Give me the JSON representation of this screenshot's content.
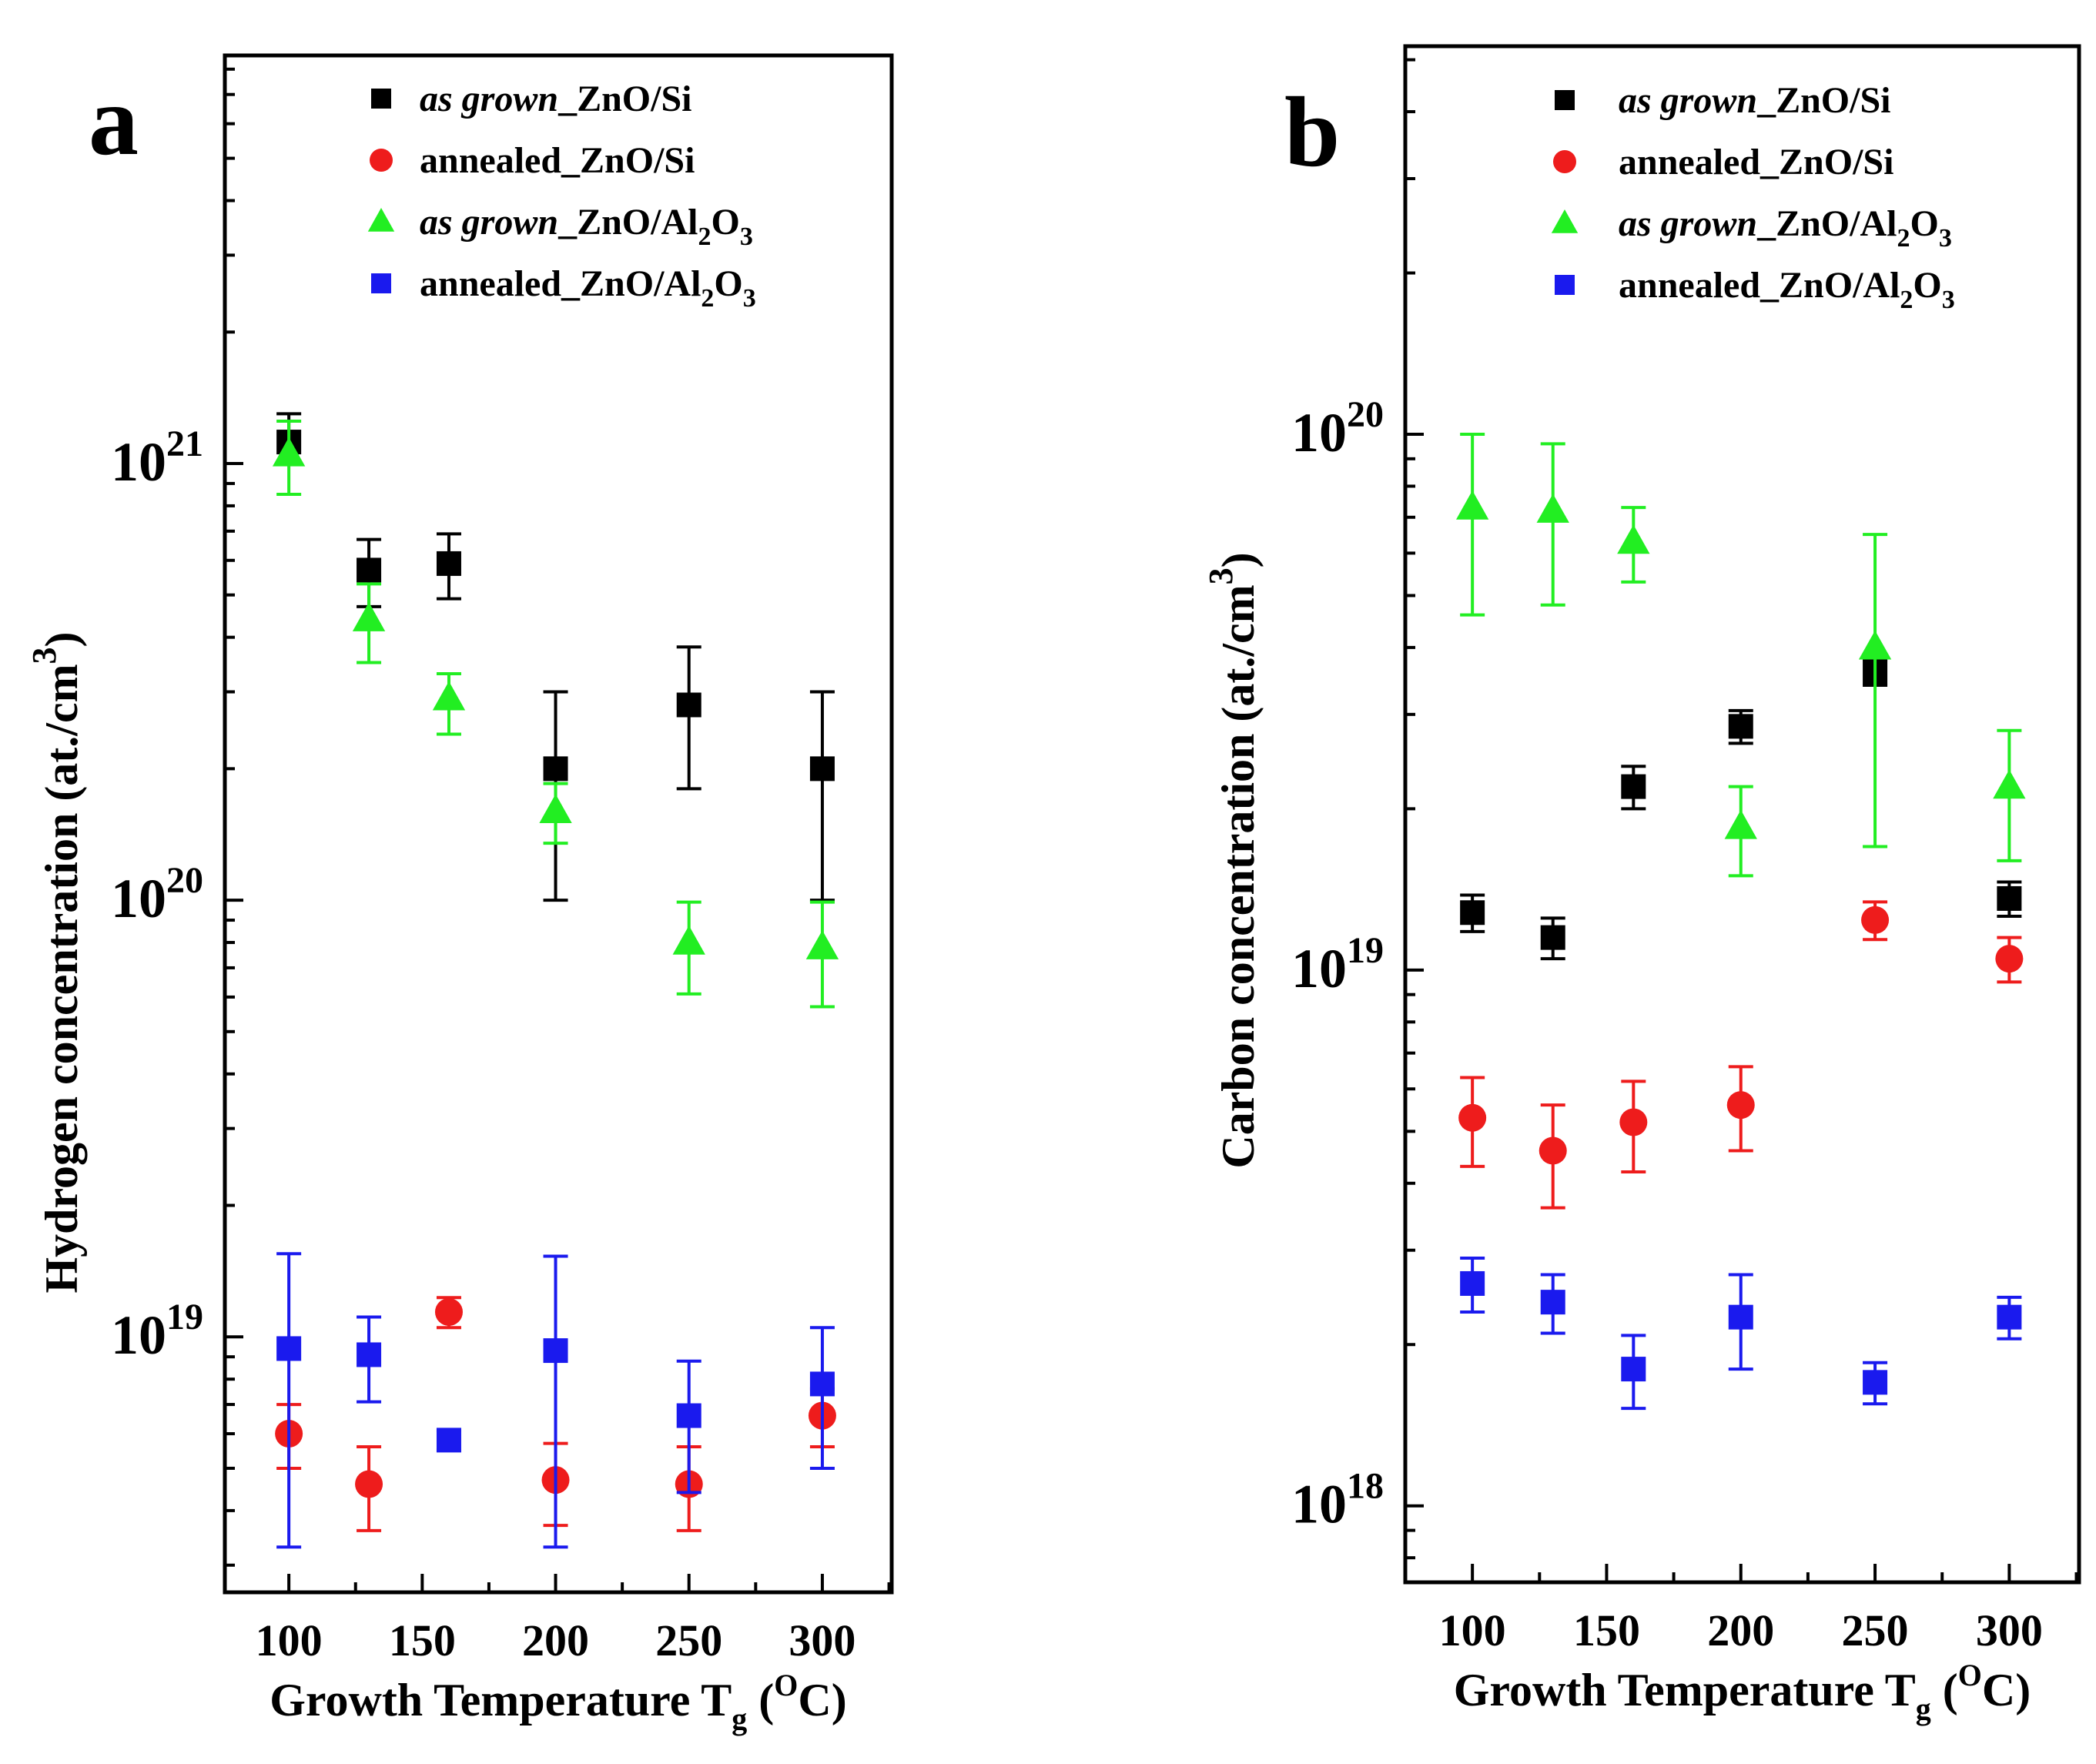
{
  "chart_data": [
    {
      "type": "scatter",
      "panel_label": "a",
      "title": "",
      "xlabel": "Growth Temperature T",
      "xlabel_subscript": "g",
      "xlabel_unit_open": " (",
      "xlabel_unit_sup": "O",
      "xlabel_unit_rest": "C)",
      "ylabel": "Hydrogen concentration (at./cm",
      "ylabel_sup": "3",
      "ylabel_close": ")",
      "yscale": "log",
      "xlim": [
        76,
        326
      ],
      "ylim": [
        2.6e+18,
        8.6e+21
      ],
      "xticks": [
        100,
        150,
        200,
        250,
        300
      ],
      "yticks": [
        {
          "value": 1e+19,
          "base": "10",
          "exp": "19"
        },
        {
          "value": 1e+20,
          "base": "10",
          "exp": "20"
        },
        {
          "value": 1e+21,
          "base": "10",
          "exp": "21"
        }
      ],
      "grid": false,
      "legend_position": "top-right",
      "series": [
        {
          "name": "as grown_ZnO/Si",
          "legend_italic": "as grown",
          "legend_rest": "_ZnO/Si",
          "legend_sub": "",
          "legend_tail": "",
          "marker": "square",
          "color": "#000000",
          "points": [
            {
              "x": 100,
              "y": 1.12e+21,
              "lo": 1e+21,
              "hi": 1.3e+21
            },
            {
              "x": 130,
              "y": 5.7e+20,
              "lo": 4.7e+20,
              "hi": 6.7e+20
            },
            {
              "x": 160,
              "y": 5.9e+20,
              "lo": 4.9e+20,
              "hi": 6.9e+20
            },
            {
              "x": 200,
              "y": 2e+20,
              "lo": 1e+20,
              "hi": 3e+20
            },
            {
              "x": 250,
              "y": 2.8e+20,
              "lo": 1.8e+20,
              "hi": 3.8e+20
            },
            {
              "x": 300,
              "y": 2e+20,
              "lo": 1e+20,
              "hi": 3e+20
            }
          ]
        },
        {
          "name": "annealed_ZnO/Si",
          "legend_italic": "",
          "legend_rest": "annealed_ZnO/Si",
          "legend_sub": "",
          "legend_tail": "",
          "marker": "circle",
          "color": "#ee1c1c",
          "points": [
            {
              "x": 100,
              "y": 6e+18,
              "lo": 5e+18,
              "hi": 7e+18
            },
            {
              "x": 130,
              "y": 4.6e+18,
              "lo": 3.6e+18,
              "hi": 5.6e+18
            },
            {
              "x": 160,
              "y": 1.14e+19,
              "lo": 1.05e+19,
              "hi": 1.23e+19
            },
            {
              "x": 200,
              "y": 4.7e+18,
              "lo": 3.7e+18,
              "hi": 5.7e+18
            },
            {
              "x": 250,
              "y": 4.6e+18,
              "lo": 3.6e+18,
              "hi": 5.6e+18
            },
            {
              "x": 300,
              "y": 6.6e+18,
              "lo": 5.6e+18,
              "hi": 7.6e+18
            }
          ]
        },
        {
          "name": "as grown_ZnO/Al2O3",
          "legend_italic": "as grown",
          "legend_rest": "_ZnO/Al",
          "legend_sub": "2",
          "legend_tail": "O",
          "legend_sub2": "3",
          "marker": "triangle",
          "color": "#22ee22",
          "points": [
            {
              "x": 100,
              "y": 1.05e+21,
              "lo": 8.5e+20,
              "hi": 1.25e+21
            },
            {
              "x": 130,
              "y": 4.4e+20,
              "lo": 3.5e+20,
              "hi": 5.3e+20
            },
            {
              "x": 160,
              "y": 2.9e+20,
              "lo": 2.4e+20,
              "hi": 3.3e+20
            },
            {
              "x": 200,
              "y": 1.6e+20,
              "lo": 1.35e+20,
              "hi": 1.85e+20
            },
            {
              "x": 250,
              "y": 8e+19,
              "lo": 6.1e+19,
              "hi": 9.9e+19
            },
            {
              "x": 300,
              "y": 7.8e+19,
              "lo": 5.7e+19,
              "hi": 9.9e+19
            }
          ]
        },
        {
          "name": "annealed_ZnO/Al2O3",
          "legend_italic": "",
          "legend_rest": "annealed_ZnO/Al",
          "legend_sub": "2",
          "legend_tail": "O",
          "legend_sub2": "3",
          "marker": "square",
          "color": "#1a1aee",
          "points": [
            {
              "x": 100,
              "y": 9.4e+18,
              "lo": 3.3e+18,
              "hi": 1.55e+19
            },
            {
              "x": 130,
              "y": 9.1e+18,
              "lo": 7.1e+18,
              "hi": 1.11e+19
            },
            {
              "x": 160,
              "y": 5.8e+18,
              "lo": 5.5e+18,
              "hi": 6.1e+18
            },
            {
              "x": 200,
              "y": 9.3e+18,
              "lo": 3.3e+18,
              "hi": 1.53e+19
            },
            {
              "x": 250,
              "y": 6.6e+18,
              "lo": 4.4e+18,
              "hi": 8.8e+18
            },
            {
              "x": 300,
              "y": 7.8e+18,
              "lo": 5e+18,
              "hi": 1.05e+19
            }
          ]
        }
      ]
    },
    {
      "type": "scatter",
      "panel_label": "b",
      "title": "",
      "xlabel": "Growth Temperature T",
      "xlabel_subscript": "g",
      "xlabel_unit_open": " (",
      "xlabel_unit_sup": "O",
      "xlabel_unit_rest": "C)",
      "ylabel": "Carbon concentration (at./cm",
      "ylabel_sup": "3",
      "ylabel_close": ")",
      "yscale": "log",
      "xlim": [
        75,
        326
      ],
      "ylim": [
        7.2e+17,
        5.3e+20
      ],
      "xticks": [
        100,
        150,
        200,
        250,
        300
      ],
      "yticks": [
        {
          "value": 1e+18,
          "base": "10",
          "exp": "18"
        },
        {
          "value": 1e+19,
          "base": "10",
          "exp": "19"
        },
        {
          "value": 1e+20,
          "base": "10",
          "exp": "20"
        }
      ],
      "grid": false,
      "legend_position": "top-right",
      "series": [
        {
          "name": "as grown_ZnO/Si",
          "legend_italic": "as grown",
          "legend_rest": "_ZnO/Si",
          "legend_sub": "",
          "legend_tail": "",
          "marker": "square",
          "color": "#000000",
          "points": [
            {
              "x": 100,
              "y": 1.28e+19,
              "lo": 1.18e+19,
              "hi": 1.38e+19
            },
            {
              "x": 130,
              "y": 1.15e+19,
              "lo": 1.05e+19,
              "hi": 1.25e+19
            },
            {
              "x": 160,
              "y": 2.2e+19,
              "lo": 2e+19,
              "hi": 2.4e+19
            },
            {
              "x": 200,
              "y": 2.85e+19,
              "lo": 2.65e+19,
              "hi": 3.05e+19
            },
            {
              "x": 250,
              "y": 3.6e+19,
              "lo": 3.4e+19,
              "hi": 3.8e+19
            },
            {
              "x": 300,
              "y": 1.36e+19,
              "lo": 1.26e+19,
              "hi": 1.46e+19
            }
          ]
        },
        {
          "name": "annealed_ZnO/Si",
          "legend_italic": "",
          "legend_rest": "annealed_ZnO/Si",
          "legend_sub": "",
          "legend_tail": "",
          "marker": "circle",
          "color": "#ee1c1c",
          "points": [
            {
              "x": 100,
              "y": 5.3e+18,
              "lo": 4.3e+18,
              "hi": 6.3e+18
            },
            {
              "x": 130,
              "y": 4.6e+18,
              "lo": 3.6e+18,
              "hi": 5.6e+18
            },
            {
              "x": 160,
              "y": 5.2e+18,
              "lo": 4.2e+18,
              "hi": 6.2e+18
            },
            {
              "x": 200,
              "y": 5.6e+18,
              "lo": 4.6e+18,
              "hi": 6.6e+18
            },
            {
              "x": 250,
              "y": 1.24e+19,
              "lo": 1.14e+19,
              "hi": 1.34e+19
            },
            {
              "x": 300,
              "y": 1.05e+19,
              "lo": 9.5e+18,
              "hi": 1.15e+19
            }
          ]
        },
        {
          "name": "as grown_ZnO/Al2O3",
          "legend_italic": "as grown",
          "legend_rest": "_ZnO/Al",
          "legend_sub": "2",
          "legend_tail": "O",
          "legend_sub2": "3",
          "marker": "triangle",
          "color": "#22ee22",
          "points": [
            {
              "x": 100,
              "y": 7.3e+19,
              "lo": 4.6e+19,
              "hi": 1e+20
            },
            {
              "x": 130,
              "y": 7.2e+19,
              "lo": 4.8e+19,
              "hi": 9.6e+19
            },
            {
              "x": 160,
              "y": 6.3e+19,
              "lo": 5.3e+19,
              "hi": 7.3e+19
            },
            {
              "x": 200,
              "y": 1.85e+19,
              "lo": 1.5e+19,
              "hi": 2.2e+19
            },
            {
              "x": 250,
              "y": 4e+19,
              "lo": 1.7e+19,
              "hi": 6.5e+19
            },
            {
              "x": 300,
              "y": 2.2e+19,
              "lo": 1.6e+19,
              "hi": 2.8e+19
            }
          ]
        },
        {
          "name": "annealed_ZnO/Al2O3",
          "legend_italic": "",
          "legend_rest": "annealed_ZnO/Al",
          "legend_sub": "2",
          "legend_tail": "O",
          "legend_sub2": "3",
          "marker": "square",
          "color": "#1a1aee",
          "points": [
            {
              "x": 100,
              "y": 2.6e+18,
              "lo": 2.3e+18,
              "hi": 2.9e+18
            },
            {
              "x": 130,
              "y": 2.4e+18,
              "lo": 2.1e+18,
              "hi": 2.7e+18
            },
            {
              "x": 160,
              "y": 1.8e+18,
              "lo": 1.52e+18,
              "hi": 2.08e+18
            },
            {
              "x": 200,
              "y": 2.25e+18,
              "lo": 1.8e+18,
              "hi": 2.7e+18
            },
            {
              "x": 250,
              "y": 1.7e+18,
              "lo": 1.55e+18,
              "hi": 1.85e+18
            },
            {
              "x": 300,
              "y": 2.25e+18,
              "lo": 2.05e+18,
              "hi": 2.45e+18
            }
          ]
        }
      ]
    }
  ]
}
